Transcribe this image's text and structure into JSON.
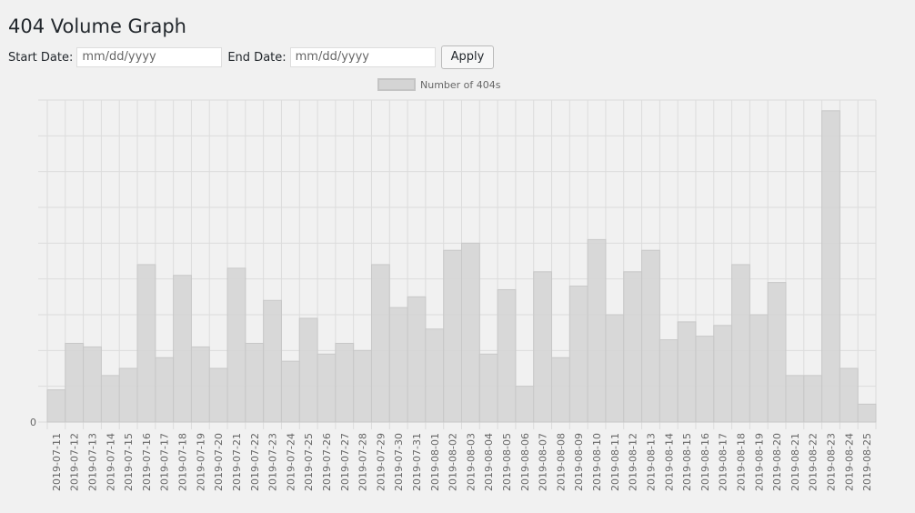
{
  "header": {
    "title": "404 Volume Graph"
  },
  "form": {
    "start_label": "Start Date:",
    "start_placeholder": "mm/dd/yyyy",
    "end_label": "End Date:",
    "end_placeholder": "mm/dd/yyyy",
    "button": "Apply"
  },
  "chart_data": {
    "type": "bar",
    "categories": [
      "2019-07-11",
      "2019-07-12",
      "2019-07-13",
      "2019-07-14",
      "2019-07-15",
      "2019-07-16",
      "2019-07-17",
      "2019-07-18",
      "2019-07-19",
      "2019-07-20",
      "2019-07-21",
      "2019-07-22",
      "2019-07-23",
      "2019-07-24",
      "2019-07-25",
      "2019-07-26",
      "2019-07-27",
      "2019-07-28",
      "2019-07-29",
      "2019-07-30",
      "2019-07-31",
      "2019-08-01",
      "2019-08-02",
      "2019-08-03",
      "2019-08-04",
      "2019-08-05",
      "2019-08-06",
      "2019-08-07",
      "2019-08-08",
      "2019-08-09",
      "2019-08-10",
      "2019-08-11",
      "2019-08-12",
      "2019-08-13",
      "2019-08-14",
      "2019-08-15",
      "2019-08-16",
      "2019-08-17",
      "2019-08-18",
      "2019-08-19",
      "2019-08-20",
      "2019-08-21",
      "2019-08-22",
      "2019-08-23",
      "2019-08-24",
      "2019-08-25"
    ],
    "series": [
      {
        "name": "Number of 404s",
        "color": "#d4d4d4",
        "values": [
          0.9,
          2.2,
          2.1,
          1.3,
          1.5,
          4.4,
          1.8,
          4.1,
          2.1,
          1.5,
          4.3,
          2.2,
          3.4,
          1.7,
          2.9,
          1.9,
          2.2,
          2.0,
          4.4,
          3.2,
          3.5,
          2.6,
          4.8,
          5.0,
          1.9,
          3.7,
          1.0,
          4.2,
          1.8,
          3.8,
          5.1,
          3.0,
          4.2,
          4.8,
          2.3,
          2.8,
          2.4,
          2.7,
          4.4,
          3.0,
          3.9,
          1.3,
          1.3,
          8.7,
          1.5,
          0.5
        ]
      }
    ],
    "ylim": [
      0,
      9
    ],
    "yticks": [
      0
    ],
    "ygrid": [
      0,
      1,
      2,
      3,
      4,
      5,
      6,
      7,
      8,
      9
    ],
    "grid": true,
    "legend": "top"
  }
}
